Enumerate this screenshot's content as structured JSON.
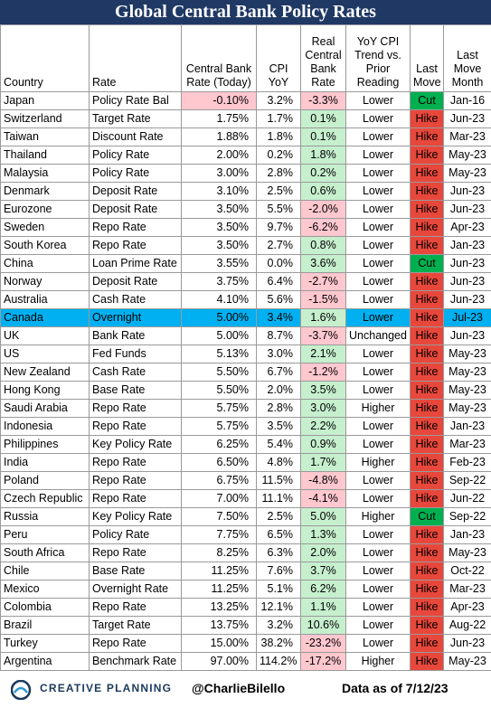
{
  "header": {
    "title": "Global Central Bank Policy Rates"
  },
  "table": {
    "columns": [
      "Country",
      "Rate",
      "Central Bank\nRate (Today)",
      "CPI\nYoY",
      "Real\nCentral\nBank\nRate",
      "YoY CPI\nTrend vs.\nPrior\nReading",
      "Last\nMove",
      "Last\nMove\nMonth"
    ],
    "rows": [
      [
        "Japan",
        "Policy Rate Bal",
        "-0.10%",
        "3.2%",
        "-3.3%",
        "Lower",
        "Cut",
        "Jan-16"
      ],
      [
        "Switzerland",
        "Target Rate",
        "1.75%",
        "1.7%",
        "0.1%",
        "Lower",
        "Hike",
        "Jun-23"
      ],
      [
        "Taiwan",
        "Discount Rate",
        "1.88%",
        "1.8%",
        "0.1%",
        "Lower",
        "Hike",
        "Mar-23"
      ],
      [
        "Thailand",
        "Policy Rate",
        "2.00%",
        "0.2%",
        "1.8%",
        "Lower",
        "Hike",
        "May-23"
      ],
      [
        "Malaysia",
        "Policy Rate",
        "3.00%",
        "2.8%",
        "0.2%",
        "Lower",
        "Hike",
        "May-23"
      ],
      [
        "Denmark",
        "Deposit Rate",
        "3.10%",
        "2.5%",
        "0.6%",
        "Lower",
        "Hike",
        "Jun-23"
      ],
      [
        "Eurozone",
        "Deposit Rate",
        "3.50%",
        "5.5%",
        "-2.0%",
        "Lower",
        "Hike",
        "Jun-23"
      ],
      [
        "Sweden",
        "Repo Rate",
        "3.50%",
        "9.7%",
        "-6.2%",
        "Lower",
        "Hike",
        "Apr-23"
      ],
      [
        "South Korea",
        "Repo Rate",
        "3.50%",
        "2.7%",
        "0.8%",
        "Lower",
        "Hike",
        "Jan-23"
      ],
      [
        "China",
        "Loan Prime Rate",
        "3.55%",
        "0.0%",
        "3.6%",
        "Lower",
        "Cut",
        "Jun-23"
      ],
      [
        "Norway",
        "Deposit Rate",
        "3.75%",
        "6.4%",
        "-2.7%",
        "Lower",
        "Hike",
        "Jun-23"
      ],
      [
        "Australia",
        "Cash Rate",
        "4.10%",
        "5.6%",
        "-1.5%",
        "Lower",
        "Hike",
        "Jun-23"
      ],
      [
        "Canada",
        "Overnight",
        "5.00%",
        "3.4%",
        "1.6%",
        "Lower",
        "Hike",
        "Jul-23"
      ],
      [
        "UK",
        "Bank Rate",
        "5.00%",
        "8.7%",
        "-3.7%",
        "Unchanged",
        "Hike",
        "Jun-23"
      ],
      [
        "US",
        "Fed Funds",
        "5.13%",
        "3.0%",
        "2.1%",
        "Lower",
        "Hike",
        "May-23"
      ],
      [
        "New Zealand",
        "Cash Rate",
        "5.50%",
        "6.7%",
        "-1.2%",
        "Lower",
        "Hike",
        "May-23"
      ],
      [
        "Hong Kong",
        "Base Rate",
        "5.50%",
        "2.0%",
        "3.5%",
        "Lower",
        "Hike",
        "May-23"
      ],
      [
        "Saudi Arabia",
        "Repo Rate",
        "5.75%",
        "2.8%",
        "3.0%",
        "Higher",
        "Hike",
        "May-23"
      ],
      [
        "Indonesia",
        "Repo Rate",
        "5.75%",
        "3.5%",
        "2.2%",
        "Lower",
        "Hike",
        "Jan-23"
      ],
      [
        "Philippines",
        "Key Policy Rate",
        "6.25%",
        "5.4%",
        "0.9%",
        "Lower",
        "Hike",
        "Mar-23"
      ],
      [
        "India",
        "Repo Rate",
        "6.50%",
        "4.8%",
        "1.7%",
        "Higher",
        "Hike",
        "Feb-23"
      ],
      [
        "Poland",
        "Repo Rate",
        "6.75%",
        "11.5%",
        "-4.8%",
        "Lower",
        "Hike",
        "Sep-22"
      ],
      [
        "Czech Republic",
        "Repo Rate",
        "7.00%",
        "11.1%",
        "-4.1%",
        "Lower",
        "Hike",
        "Jun-22"
      ],
      [
        "Russia",
        "Key Policy Rate",
        "7.50%",
        "2.5%",
        "5.0%",
        "Higher",
        "Cut",
        "Sep-22"
      ],
      [
        "Peru",
        "Policy Rate",
        "7.75%",
        "6.5%",
        "1.3%",
        "Lower",
        "Hike",
        "Jan-23"
      ],
      [
        "South Africa",
        "Repo Rate",
        "8.25%",
        "6.3%",
        "2.0%",
        "Lower",
        "Hike",
        "May-23"
      ],
      [
        "Chile",
        "Base Rate",
        "11.25%",
        "7.6%",
        "3.7%",
        "Lower",
        "Hike",
        "Oct-22"
      ],
      [
        "Mexico",
        "Overnight Rate",
        "11.25%",
        "5.1%",
        "6.2%",
        "Lower",
        "Hike",
        "Mar-23"
      ],
      [
        "Colombia",
        "Repo Rate",
        "13.25%",
        "12.1%",
        "1.1%",
        "Lower",
        "Hike",
        "Apr-23"
      ],
      [
        "Brazil",
        "Target Rate",
        "13.75%",
        "3.2%",
        "10.6%",
        "Lower",
        "Hike",
        "Aug-22"
      ],
      [
        "Turkey",
        "Repo Rate",
        "15.00%",
        "38.2%",
        "-23.2%",
        "Lower",
        "Hike",
        "Jun-23"
      ],
      [
        "Argentina",
        "Benchmark Rate",
        "97.00%",
        "114.2%",
        "-17.2%",
        "Higher",
        "Hike",
        "May-23"
      ]
    ]
  },
  "footer": {
    "brand": "CREATIVE PLANNING",
    "handle": "@CharlieBilello",
    "as_of": "Data as of 7/12/23"
  }
}
